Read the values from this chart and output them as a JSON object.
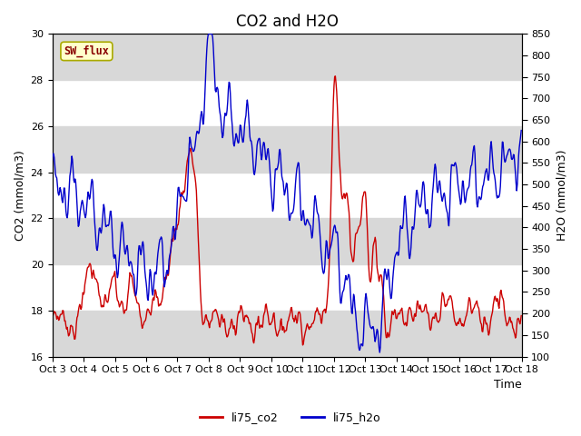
{
  "title": "CO2 and H2O",
  "xlabel": "Time",
  "ylabel_left": "CO2 (mmol/m3)",
  "ylabel_right": "H2O (mmol/m3)",
  "ylim_left": [
    16,
    30
  ],
  "ylim_right": [
    100,
    850
  ],
  "x_tick_labels": [
    "Oct 3",
    "Oct 4",
    "Oct 5",
    "Oct 6",
    "Oct 7",
    "Oct 8",
    "Oct 9",
    "Oct 10",
    "Oct 11",
    "Oct 12",
    "Oct 13",
    "Oct 14",
    "Oct 15",
    "Oct 16",
    "Oct 17",
    "Oct 18"
  ],
  "co2_color": "#cc0000",
  "h2o_color": "#0000cc",
  "sw_flux_box_facecolor": "#ffffcc",
  "sw_flux_text_color": "#880000",
  "sw_flux_edge_color": "#aaaa00",
  "band_color": "#d8d8d8",
  "bg_color": "#ffffff",
  "line_width": 1.0,
  "legend_co2": "li75_co2",
  "legend_h2o": "li75_h2o",
  "title_fontsize": 12,
  "axis_fontsize": 9,
  "tick_fontsize": 8,
  "yticks_left": [
    16,
    18,
    20,
    22,
    24,
    26,
    28,
    30
  ],
  "yticks_right": [
    100,
    150,
    200,
    250,
    300,
    350,
    400,
    450,
    500,
    550,
    600,
    650,
    700,
    750,
    800,
    850
  ]
}
